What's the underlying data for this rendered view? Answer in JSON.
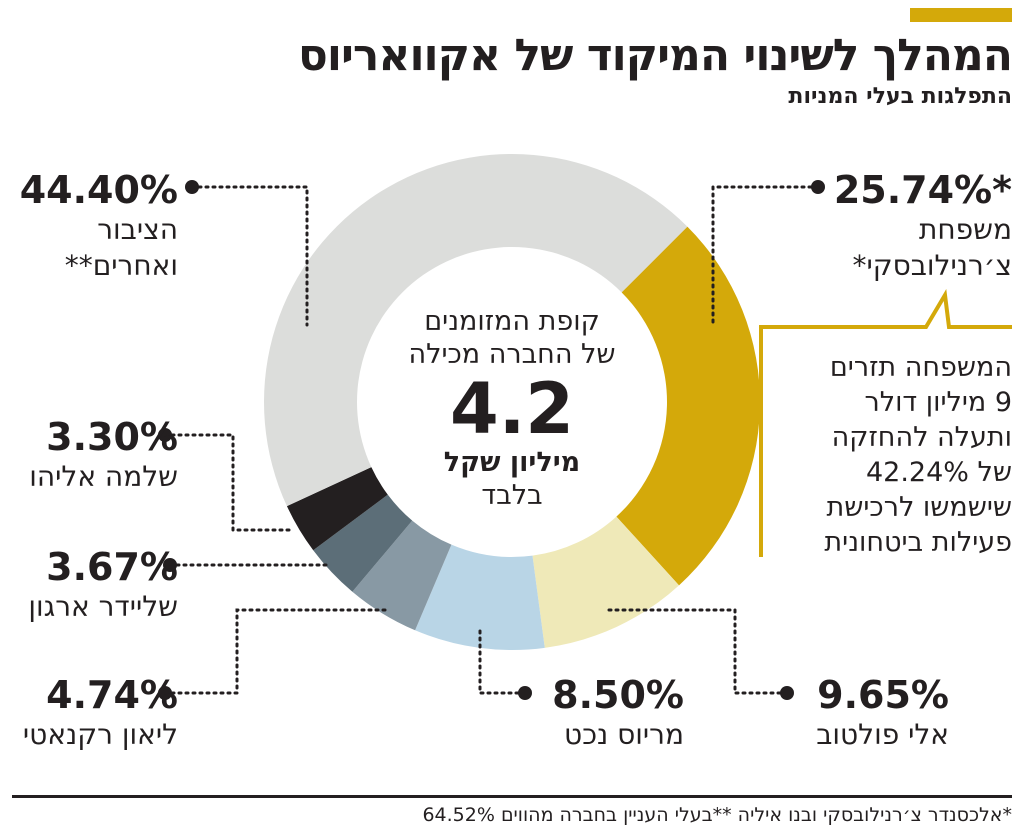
{
  "header": {
    "title": "המהלך לשינוי המיקוד של אקוואריוס",
    "subtitle": "התפלגות בעלי המניות"
  },
  "center": {
    "line1": "קופת המזומנים",
    "line2": "של החברה מכילה",
    "value": "4.2",
    "unit": "מיליון שקל",
    "unit2": "בלבד"
  },
  "note": {
    "lines": [
      "המשפחה תזרים",
      "9 מיליון דולר",
      "ותעלה להחזקה",
      "של 42.24%",
      "שישמשו לרכישת",
      "פעילות ביטחונית"
    ]
  },
  "footnote": "*אלכסנדר צ׳רנילובסקי ובנו איליה **בעלי העניין בחברה מהווים 64.52%",
  "colors": {
    "accent": "#d4a90a"
  },
  "chart_data": {
    "type": "pie",
    "donut": true,
    "start_angle_deg": 45,
    "direction": "clockwise",
    "slices": [
      {
        "label_pct": "25.74%*",
        "name1": "משפחת",
        "name2": "צ׳רנילובסקי*",
        "value": 25.74,
        "color": "#d4a90a"
      },
      {
        "label_pct": "9.65%",
        "name1": "אלי פולטוב",
        "value": 9.65,
        "color": "#efe9b8"
      },
      {
        "label_pct": "8.50%",
        "name1": "מריוס נכט",
        "value": 8.5,
        "color": "#b9d5e6"
      },
      {
        "label_pct": "4.74%",
        "name1": "ליאון רקנאטי",
        "value": 4.74,
        "color": "#8899a4"
      },
      {
        "label_pct": "3.67%",
        "name1": "שליידר ארגון",
        "value": 3.67,
        "color": "#5c6e78"
      },
      {
        "label_pct": "3.30%",
        "name1": "שלמה אליהו",
        "value": 3.3,
        "color": "#231f20"
      },
      {
        "label_pct": "44.40%",
        "name1": "הציבור",
        "name2": "ואחרים**",
        "value": 44.4,
        "color": "#dcdddb"
      }
    ]
  }
}
